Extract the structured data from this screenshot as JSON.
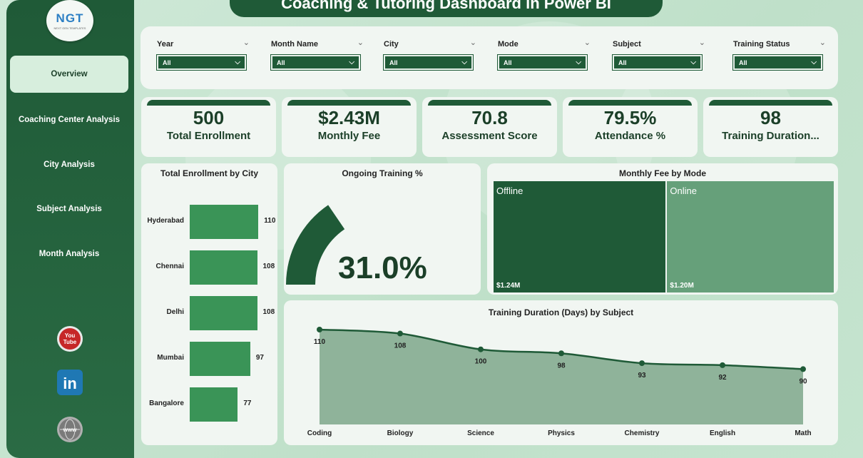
{
  "title": "Coaching & Tutoring Dashboard in Power BI",
  "logo": {
    "text": "NGT",
    "subtext": "NEXT GEN TEMPLATES"
  },
  "nav": [
    {
      "label": "Overview",
      "active": true
    },
    {
      "label": "Coaching Center Analysis",
      "active": false
    },
    {
      "label": "City Analysis",
      "active": false
    },
    {
      "label": "Subject Analysis",
      "active": false
    },
    {
      "label": "Month Analysis",
      "active": false
    }
  ],
  "social": [
    {
      "name": "youtube-icon",
      "label": "You Tube"
    },
    {
      "name": "linkedin-icon",
      "label": "in"
    },
    {
      "name": "website-icon",
      "label": "www"
    }
  ],
  "filters": [
    {
      "label": "Year",
      "value": "All"
    },
    {
      "label": "Month Name",
      "value": "All"
    },
    {
      "label": "City",
      "value": "All"
    },
    {
      "label": "Mode",
      "value": "All"
    },
    {
      "label": "Subject",
      "value": "All"
    },
    {
      "label": "Training Status",
      "value": "All"
    }
  ],
  "kpis": [
    {
      "value": "500",
      "label": "Total Enrollment"
    },
    {
      "value": "$2.43M",
      "label": "Monthly Fee"
    },
    {
      "value": "70.8",
      "label": "Assessment Score"
    },
    {
      "value": "79.5%",
      "label": "Attendance %"
    },
    {
      "value": "98",
      "label": "Training Duration..."
    }
  ],
  "enrollment_chart": {
    "title": "Total Enrollment by City",
    "cities": [
      "Hyderabad",
      "Chennai",
      "Delhi",
      "Mumbai",
      "Bangalore"
    ],
    "values": [
      110,
      108,
      108,
      97,
      77
    ],
    "value_labels": [
      "110",
      "108",
      "108",
      "97",
      "77"
    ]
  },
  "gauge": {
    "title": "Ongoing Training %",
    "value_label": "31.0%",
    "fraction": 0.31
  },
  "treemap": {
    "title": "Monthly Fee by Mode",
    "items": [
      {
        "name": "Offline",
        "value_label": "$1.24M",
        "value": 1.24,
        "color": "#1f5a37"
      },
      {
        "name": "Online",
        "value_label": "$1.20M",
        "value": 1.2,
        "color": "#66a07a"
      }
    ]
  },
  "chart_data": {
    "type": "area",
    "title": "Training Duration (Days) by Subject",
    "categories": [
      "Coding",
      "Biology",
      "Science",
      "Physics",
      "Chemistry",
      "English",
      "Math"
    ],
    "values": [
      110,
      108,
      100,
      98,
      93,
      92,
      90
    ],
    "value_labels": [
      "110",
      "108",
      "100",
      "98",
      "93",
      "92",
      "90"
    ],
    "xlabel": "",
    "ylabel": "",
    "ylim": [
      0,
      110
    ],
    "grid": false,
    "line_color": "#1f5a37",
    "fill_color": "#8fb39a"
  },
  "colors": {
    "primary": "#1f5a37",
    "bar": "#3a9457",
    "panel": "#f1f6f2",
    "background": "#c9e5d2"
  }
}
